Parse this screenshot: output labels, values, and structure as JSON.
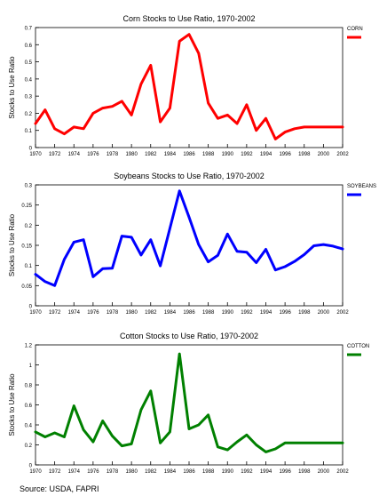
{
  "chart_data": [
    {
      "type": "line",
      "title": "Corn Stocks to Use Ratio, 1970-2002",
      "ylabel": "Stocks to Use Ratio",
      "xlabel": "",
      "x": [
        1970,
        1971,
        1972,
        1973,
        1974,
        1975,
        1976,
        1977,
        1978,
        1979,
        1980,
        1981,
        1982,
        1983,
        1984,
        1985,
        1986,
        1987,
        1988,
        1989,
        1990,
        1991,
        1992,
        1993,
        1994,
        1995,
        1996,
        1997,
        1998,
        1999,
        2000,
        2001,
        2002
      ],
      "xticks": [
        "1970",
        "1972",
        "1974",
        "1976",
        "1978",
        "1980",
        "1982",
        "1984",
        "1986",
        "1988",
        "1990",
        "1992",
        "1994",
        "1996",
        "1998",
        "2000",
        "2002"
      ],
      "ylim": [
        0,
        0.7
      ],
      "yticks": [
        0,
        0.1,
        0.2,
        0.3,
        0.4,
        0.5,
        0.6,
        0.7
      ],
      "ytick_labels": [
        "0",
        "0.1",
        "0.2",
        "0.3",
        "0.4",
        "0.5",
        "0.6",
        "0.7"
      ],
      "grid": false,
      "legend": "right",
      "series": [
        {
          "name": "CORN",
          "color": "#ff0000",
          "values": [
            0.14,
            0.22,
            0.11,
            0.08,
            0.12,
            0.11,
            0.2,
            0.23,
            0.24,
            0.27,
            0.19,
            0.37,
            0.48,
            0.15,
            0.23,
            0.62,
            0.66,
            0.55,
            0.26,
            0.17,
            0.19,
            0.14,
            0.25,
            0.1,
            0.17,
            0.05,
            0.09,
            0.11,
            0.12,
            0.12,
            0.12,
            0.12,
            0.12
          ]
        }
      ]
    },
    {
      "type": "line",
      "title": "Soybeans Stocks to Use Ratio, 1970-2002",
      "ylabel": "Stocks to Use Ratio",
      "xlabel": "",
      "x": [
        1970,
        1971,
        1972,
        1973,
        1974,
        1975,
        1976,
        1977,
        1978,
        1979,
        1980,
        1981,
        1982,
        1983,
        1984,
        1985,
        1986,
        1987,
        1988,
        1989,
        1990,
        1991,
        1992,
        1993,
        1994,
        1995,
        1996,
        1997,
        1998,
        1999,
        2000,
        2001,
        2002
      ],
      "xticks": [
        "1970",
        "1972",
        "1974",
        "1976",
        "1978",
        "1980",
        "1982",
        "1984",
        "1986",
        "1988",
        "1990",
        "1992",
        "1994",
        "1996",
        "1998",
        "2000",
        "2002"
      ],
      "ylim": [
        0,
        0.3
      ],
      "yticks": [
        0,
        0.05,
        0.1,
        0.15,
        0.2,
        0.25,
        0.3
      ],
      "ytick_labels": [
        "0",
        "0.05",
        "0.1",
        "0.15",
        "0.2",
        "0.25",
        "0.3"
      ],
      "grid": false,
      "legend": "right",
      "series": [
        {
          "name": "SOYBEANS",
          "color": "#0000ff",
          "values": [
            0.078,
            0.06,
            0.05,
            0.115,
            0.158,
            0.164,
            0.072,
            0.092,
            0.093,
            0.173,
            0.17,
            0.126,
            0.164,
            0.099,
            0.192,
            0.285,
            0.22,
            0.152,
            0.109,
            0.125,
            0.178,
            0.135,
            0.133,
            0.107,
            0.14,
            0.089,
            0.097,
            0.11,
            0.127,
            0.149,
            0.152,
            0.148,
            0.141
          ]
        }
      ]
    },
    {
      "type": "line",
      "title": "Cotton Stocks to Use Ratio, 1970-2002",
      "ylabel": "Stocks to Use Ratio",
      "xlabel": "",
      "x": [
        1970,
        1971,
        1972,
        1973,
        1974,
        1975,
        1976,
        1977,
        1978,
        1979,
        1980,
        1981,
        1982,
        1983,
        1984,
        1985,
        1986,
        1987,
        1988,
        1989,
        1990,
        1991,
        1992,
        1993,
        1994,
        1995,
        1996,
        1997,
        1998,
        1999,
        2000,
        2001,
        2002
      ],
      "xticks": [
        "1970",
        "1972",
        "1974",
        "1976",
        "1978",
        "1980",
        "1982",
        "1984",
        "1986",
        "1988",
        "1990",
        "1992",
        "1994",
        "1996",
        "1998",
        "2000",
        "2002"
      ],
      "ylim": [
        0,
        1.2
      ],
      "yticks": [
        0,
        0.2,
        0.4,
        0.6,
        0.8,
        1,
        1.2
      ],
      "ytick_labels": [
        "0",
        "0.2",
        "0.4",
        "0.6",
        "0.8",
        "1",
        "1.2"
      ],
      "grid": false,
      "legend": "right",
      "series": [
        {
          "name": "COTTON",
          "color": "#008000",
          "values": [
            0.33,
            0.28,
            0.32,
            0.28,
            0.59,
            0.35,
            0.23,
            0.44,
            0.29,
            0.19,
            0.21,
            0.55,
            0.74,
            0.22,
            0.33,
            1.11,
            0.36,
            0.4,
            0.5,
            0.18,
            0.15,
            0.23,
            0.3,
            0.2,
            0.13,
            0.16,
            0.22,
            0.22,
            0.22,
            0.22,
            0.22,
            0.22,
            0.22
          ]
        }
      ]
    }
  ],
  "source": "Source:  USDA, FAPRI"
}
